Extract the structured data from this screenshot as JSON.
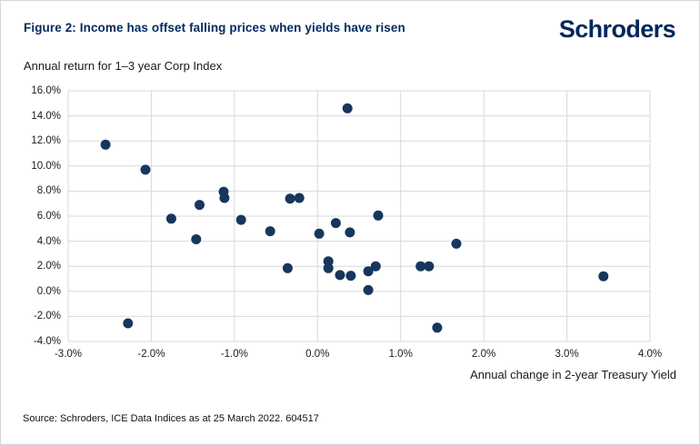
{
  "header": {
    "title": "Figure 2: Income has offset falling prices when yields have risen",
    "logo_text": "Schroders"
  },
  "chart": {
    "subtitle": "Annual return for 1–3 year Corp Index",
    "x_axis_title": "Annual change in 2-year Treasury Yield",
    "source": "Source: Schroders, ICE Data Indices as at 25 March 2022. 604517"
  },
  "colors": {
    "title_navy": "#002a5e",
    "logo_navy": "#00275d",
    "marker": "#17365d",
    "gridline": "#d9d9d9",
    "tick_text": "#1a1a1a"
  },
  "chart_data": {
    "type": "scatter",
    "title": "Figure 2: Income has offset falling prices when yields have risen",
    "subtitle": "Annual return for 1–3 year Corp Index",
    "xlabel": "Annual change in 2-year Treasury Yield",
    "ylabel": "Annual return for 1–3 year Corp Index",
    "xlim": [
      -3,
      4
    ],
    "ylim": [
      -4,
      16
    ],
    "grid": true,
    "legend": false,
    "x_ticks": [
      {
        "v": -3,
        "label": "-3.0%"
      },
      {
        "v": -2,
        "label": "-2.0%"
      },
      {
        "v": -1,
        "label": "-1.0%"
      },
      {
        "v": 0,
        "label": "0.0%"
      },
      {
        "v": 1,
        "label": "1.0%"
      },
      {
        "v": 2,
        "label": "2.0%"
      },
      {
        "v": 3,
        "label": "3.0%"
      },
      {
        "v": 4,
        "label": "4.0%"
      }
    ],
    "y_ticks": [
      {
        "v": 16,
        "label": "16.0%"
      },
      {
        "v": 14,
        "label": "14.0%"
      },
      {
        "v": 12,
        "label": "12.0%"
      },
      {
        "v": 10,
        "label": "10.0%"
      },
      {
        "v": 8,
        "label": "8.0%"
      },
      {
        "v": 6,
        "label": "6.0%"
      },
      {
        "v": 4,
        "label": "4.0%"
      },
      {
        "v": 2,
        "label": "2.0%"
      },
      {
        "v": 0,
        "label": "0.0%"
      },
      {
        "v": -2,
        "label": "-2.0%"
      },
      {
        "v": -4,
        "label": "-4.0%"
      }
    ],
    "points": [
      {
        "x": -2.55,
        "y": 11.7
      },
      {
        "x": -2.28,
        "y": -2.55
      },
      {
        "x": -2.07,
        "y": 9.7
      },
      {
        "x": -1.76,
        "y": 5.8
      },
      {
        "x": -1.46,
        "y": 4.15
      },
      {
        "x": -1.42,
        "y": 6.9
      },
      {
        "x": -1.13,
        "y": 7.95
      },
      {
        "x": -1.12,
        "y": 7.45
      },
      {
        "x": -0.92,
        "y": 5.7
      },
      {
        "x": -0.57,
        "y": 4.8
      },
      {
        "x": -0.36,
        "y": 1.85
      },
      {
        "x": -0.33,
        "y": 7.4
      },
      {
        "x": -0.22,
        "y": 7.45
      },
      {
        "x": 0.02,
        "y": 4.6
      },
      {
        "x": 0.13,
        "y": 2.4
      },
      {
        "x": 0.13,
        "y": 1.85
      },
      {
        "x": 0.22,
        "y": 5.45
      },
      {
        "x": 0.27,
        "y": 1.3
      },
      {
        "x": 0.36,
        "y": 14.6
      },
      {
        "x": 0.39,
        "y": 4.7
      },
      {
        "x": 0.4,
        "y": 1.25
      },
      {
        "x": 0.61,
        "y": 1.6
      },
      {
        "x": 0.61,
        "y": 0.1
      },
      {
        "x": 0.7,
        "y": 2.0
      },
      {
        "x": 0.73,
        "y": 6.05
      },
      {
        "x": 1.24,
        "y": 2.0
      },
      {
        "x": 1.34,
        "y": 2.0
      },
      {
        "x": 1.44,
        "y": -2.9
      },
      {
        "x": 1.67,
        "y": 3.8
      },
      {
        "x": 3.44,
        "y": 1.2
      }
    ],
    "marker_color": "#17365d",
    "marker_radius": 5.5
  }
}
